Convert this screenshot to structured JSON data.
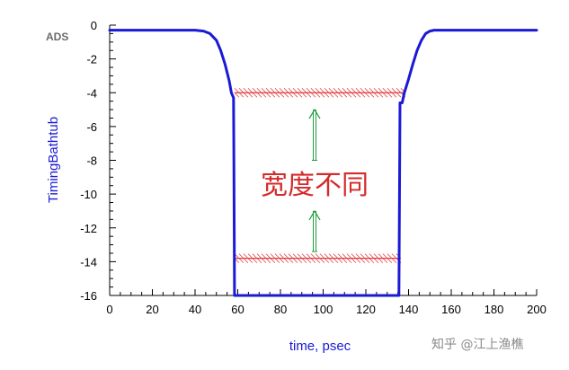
{
  "watermark_text": "ADS",
  "footer_text": "知乎 @江上渔樵",
  "annotation_text": "宽度不同",
  "colors": {
    "trace": "#1a1ad6",
    "hatch": "#e03a3a",
    "arrow": "#1f9e3a",
    "annotation": "#d52a2a"
  },
  "chart_data": {
    "type": "line",
    "xlabel": "time, psec",
    "ylabel": "TimingBathtub",
    "xlim": [
      0,
      200
    ],
    "ylim": [
      -16,
      0
    ],
    "xticks": [
      0,
      20,
      40,
      60,
      80,
      100,
      120,
      140,
      160,
      180,
      200
    ],
    "yticks": [
      0,
      -2,
      -4,
      -6,
      -8,
      -10,
      -12,
      -14,
      -16
    ],
    "grid": false,
    "series": [
      {
        "x": [
          0,
          40,
          44,
          47,
          50,
          52,
          54,
          56,
          57,
          58,
          58.2,
          58.5,
          59,
          100,
          135.5,
          136,
          137,
          138,
          140,
          142,
          144,
          146,
          148,
          150,
          152,
          155,
          200
        ],
        "y": [
          -0.3,
          -0.3,
          -0.35,
          -0.5,
          -0.9,
          -1.5,
          -2.3,
          -3.3,
          -4.0,
          -4.3,
          -8.0,
          -16,
          -16,
          -16,
          -16,
          -4.6,
          -4.6,
          -4.0,
          -3.2,
          -2.3,
          -1.5,
          -0.9,
          -0.5,
          -0.35,
          -0.3,
          -0.3,
          -0.3
        ]
      }
    ],
    "annotations": [
      {
        "type": "hatch",
        "y": -4.0,
        "x_range": [
          58.5,
          138
        ]
      },
      {
        "type": "hatch",
        "y": -13.8,
        "x_range": [
          58.5,
          136
        ]
      },
      {
        "type": "arrow",
        "x": 96,
        "from_y": -5.0,
        "to_y": -8.0
      },
      {
        "type": "arrow",
        "x": 96,
        "from_y": -11.0,
        "to_y": -13.4
      }
    ]
  }
}
